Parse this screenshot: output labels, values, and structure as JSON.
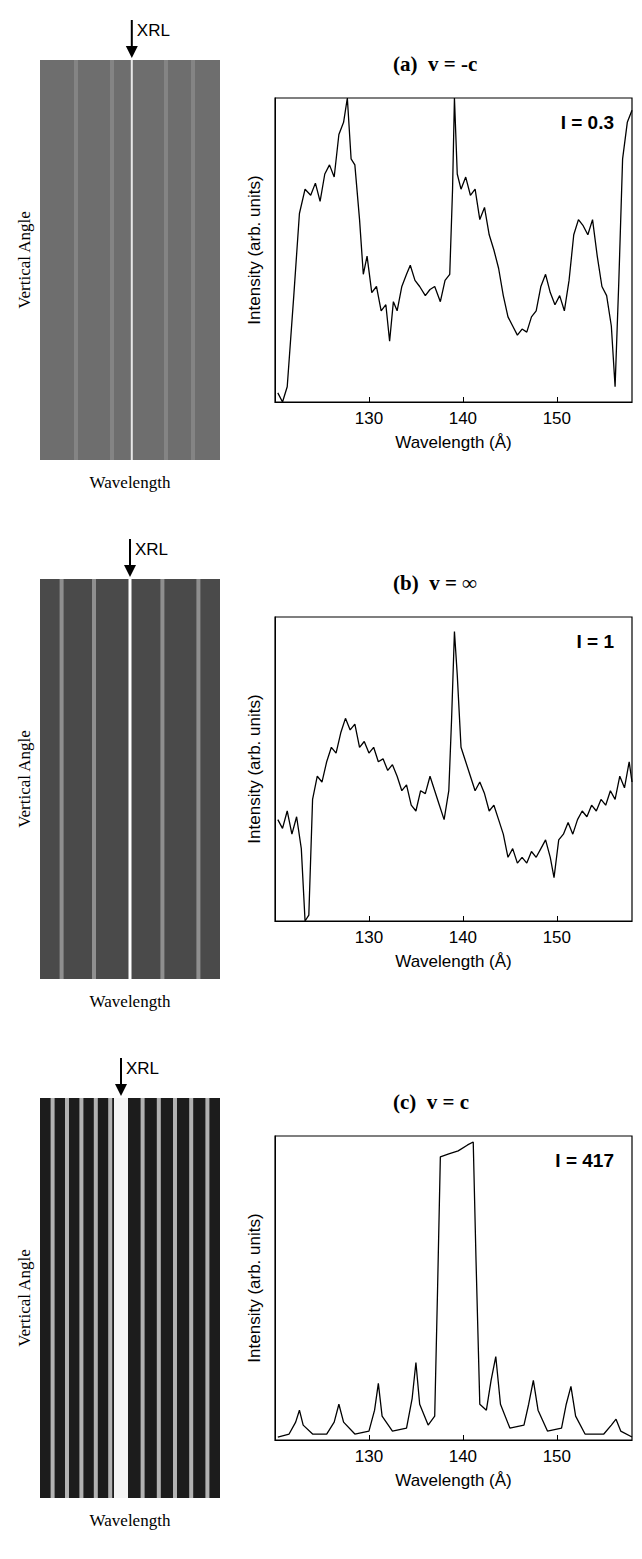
{
  "chart_data": [
    {
      "type": "line",
      "title": "(a)  v = -c",
      "annotation": "I = 0.3",
      "x_label": "Wavelength (Å)",
      "y_label": "Intensity (arb. units)",
      "color": "#000000",
      "xlim": [
        120,
        158
      ],
      "xticks": [
        130,
        140,
        150
      ],
      "ylim": [
        0,
        1
      ],
      "tick_labels": "x",
      "x": [
        120.3,
        120.8,
        121.3,
        122,
        122.6,
        123.2,
        123.8,
        124.3,
        124.8,
        125.3,
        125.8,
        126.3,
        126.8,
        127.3,
        127.7,
        128.1,
        128.5,
        129,
        129.4,
        129.8,
        130.3,
        130.8,
        131.3,
        131.8,
        132.2,
        132.6,
        133,
        133.5,
        134,
        134.4,
        134.9,
        135.4,
        136,
        136.5,
        137,
        137.6,
        138.1,
        138.6,
        138.9,
        139.1,
        139.4,
        139.8,
        140.3,
        140.8,
        141.3,
        141.8,
        142.3,
        142.8,
        143.3,
        143.8,
        144.3,
        144.8,
        145.3,
        145.8,
        146.3,
        146.8,
        147.3,
        147.8,
        148.3,
        148.8,
        149.3,
        149.8,
        150.3,
        150.8,
        151.3,
        151.8,
        152.3,
        152.8,
        153.3,
        153.8,
        154.3,
        154.8,
        155.3,
        155.8,
        156.2,
        156.6,
        157,
        157.5,
        158
      ],
      "values": [
        0.03,
        0.0,
        0.05,
        0.35,
        0.62,
        0.7,
        0.68,
        0.72,
        0.66,
        0.75,
        0.78,
        0.74,
        0.88,
        0.92,
        1.0,
        0.8,
        0.78,
        0.6,
        0.42,
        0.48,
        0.36,
        0.38,
        0.3,
        0.32,
        0.2,
        0.33,
        0.3,
        0.38,
        0.42,
        0.45,
        0.4,
        0.38,
        0.35,
        0.37,
        0.38,
        0.33,
        0.4,
        0.42,
        0.7,
        1.0,
        0.75,
        0.7,
        0.74,
        0.68,
        0.7,
        0.6,
        0.64,
        0.55,
        0.5,
        0.44,
        0.35,
        0.28,
        0.25,
        0.22,
        0.24,
        0.23,
        0.28,
        0.3,
        0.38,
        0.42,
        0.36,
        0.32,
        0.35,
        0.3,
        0.4,
        0.55,
        0.6,
        0.58,
        0.55,
        0.6,
        0.48,
        0.38,
        0.35,
        0.25,
        0.05,
        0.4,
        0.8,
        0.92,
        0.96
      ]
    },
    {
      "type": "line",
      "title": "(b)  v = ∞",
      "annotation": "I = 1",
      "x_label": "Wavelength (Å)",
      "y_label": "Intensity (arb. units)",
      "color": "#000000",
      "xlim": [
        120,
        158
      ],
      "xticks": [
        130,
        140,
        150
      ],
      "ylim": [
        0,
        1.05
      ],
      "tick_labels": "x",
      "x": [
        120.3,
        120.8,
        121.3,
        121.8,
        122.3,
        122.8,
        123.2,
        123.6,
        124,
        124.5,
        125,
        125.5,
        126,
        126.5,
        127,
        127.5,
        128,
        128.5,
        129,
        129.5,
        130,
        130.5,
        131,
        131.5,
        132,
        132.5,
        133,
        133.5,
        134,
        134.5,
        135,
        135.5,
        136,
        136.5,
        137,
        137.5,
        138,
        138.5,
        138.8,
        139.1,
        139.4,
        139.8,
        140.3,
        140.8,
        141.3,
        141.8,
        142.3,
        142.8,
        143.3,
        143.8,
        144.3,
        144.8,
        145.3,
        145.8,
        146.3,
        146.8,
        147.3,
        147.8,
        148.3,
        148.8,
        149.3,
        149.7,
        150.2,
        150.7,
        151.2,
        151.7,
        152.2,
        152.7,
        153.2,
        153.7,
        154.2,
        154.7,
        155.2,
        155.7,
        156.2,
        156.7,
        157.2,
        157.7,
        158
      ],
      "values": [
        0.35,
        0.32,
        0.38,
        0.3,
        0.36,
        0.25,
        0.0,
        0.02,
        0.42,
        0.5,
        0.48,
        0.55,
        0.6,
        0.58,
        0.65,
        0.7,
        0.66,
        0.68,
        0.6,
        0.62,
        0.58,
        0.6,
        0.55,
        0.56,
        0.52,
        0.54,
        0.5,
        0.45,
        0.47,
        0.4,
        0.38,
        0.45,
        0.44,
        0.5,
        0.45,
        0.4,
        0.35,
        0.45,
        0.7,
        1.0,
        0.85,
        0.6,
        0.55,
        0.5,
        0.45,
        0.48,
        0.44,
        0.38,
        0.4,
        0.35,
        0.3,
        0.22,
        0.25,
        0.2,
        0.22,
        0.2,
        0.24,
        0.22,
        0.25,
        0.28,
        0.22,
        0.15,
        0.28,
        0.3,
        0.34,
        0.3,
        0.35,
        0.38,
        0.36,
        0.4,
        0.38,
        0.42,
        0.4,
        0.45,
        0.42,
        0.5,
        0.46,
        0.55,
        0.48
      ]
    },
    {
      "type": "line",
      "title": "(c)  v = c",
      "annotation": "I = 417",
      "x_label": "Wavelength (Å)",
      "y_label": "Intensity (arb. units)",
      "color": "#000000",
      "xlim": [
        120,
        158
      ],
      "xticks": [
        130,
        140,
        150
      ],
      "ylim": [
        0,
        1.02
      ],
      "tick_labels": "x",
      "x": [
        120.3,
        121.5,
        122.2,
        122.6,
        123,
        124,
        125.5,
        126.3,
        126.8,
        127.3,
        128.5,
        130,
        130.6,
        131,
        131.4,
        132.5,
        134,
        134.6,
        135,
        135.4,
        136.3,
        137,
        137.3,
        137.6,
        138.5,
        139.5,
        140.5,
        141.1,
        141.4,
        141.8,
        142.5,
        143,
        143.5,
        144,
        145,
        146.5,
        147,
        147.5,
        148,
        149,
        150.5,
        151,
        151.5,
        152,
        153,
        155,
        155.8,
        156.3,
        156.8,
        158
      ],
      "values": [
        0.01,
        0.02,
        0.06,
        0.1,
        0.05,
        0.02,
        0.02,
        0.06,
        0.12,
        0.06,
        0.02,
        0.03,
        0.1,
        0.19,
        0.08,
        0.03,
        0.04,
        0.14,
        0.26,
        0.12,
        0.05,
        0.08,
        0.5,
        0.95,
        0.96,
        0.97,
        0.99,
        1.0,
        0.6,
        0.12,
        0.1,
        0.2,
        0.28,
        0.12,
        0.04,
        0.05,
        0.12,
        0.2,
        0.1,
        0.03,
        0.04,
        0.12,
        0.18,
        0.08,
        0.02,
        0.02,
        0.05,
        0.07,
        0.03,
        0.01
      ]
    }
  ],
  "images": [
    {
      "marker_label": "XRL",
      "y_label": "Vertical Angle",
      "x_label": "Wavelength"
    },
    {
      "marker_label": "XRL",
      "y_label": "Vertical Angle",
      "x_label": "Wavelength"
    },
    {
      "marker_label": "XRL",
      "y_label": "Vertical Angle",
      "x_label": "Wavelength"
    }
  ]
}
